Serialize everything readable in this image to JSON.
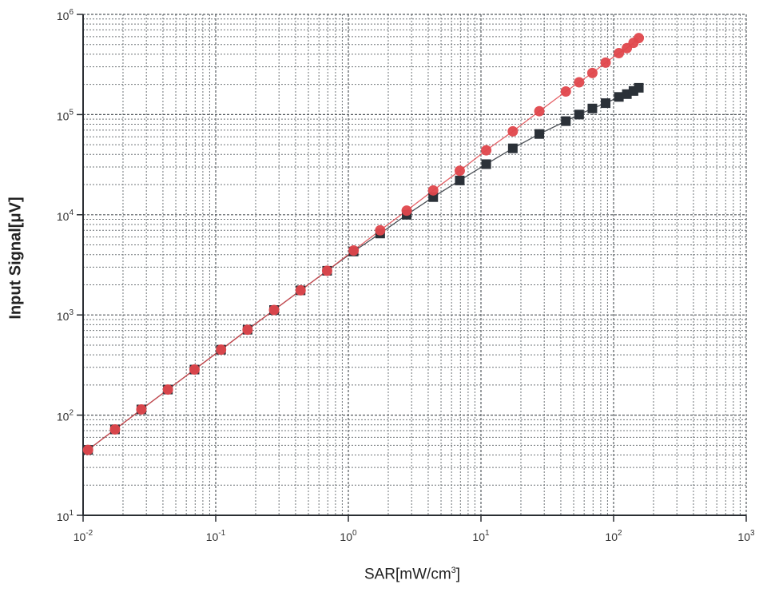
{
  "chart_data": {
    "type": "scatter",
    "title": "",
    "xlabel": "SAR[mW/cm",
    "xlabel_sup": "3",
    "xlabel_close": "]",
    "ylabel": "Input Signal[μV]",
    "xscale": "log",
    "yscale": "log",
    "xlim": [
      0.01,
      1000
    ],
    "ylim": [
      10,
      1000000
    ],
    "x_ticks": [
      {
        "value": 0.01,
        "base": "10",
        "exp": "-2"
      },
      {
        "value": 0.1,
        "base": "10",
        "exp": "-1"
      },
      {
        "value": 1,
        "base": "10",
        "exp": "0"
      },
      {
        "value": 10,
        "base": "10",
        "exp": "1"
      },
      {
        "value": 100,
        "base": "10",
        "exp": "2"
      },
      {
        "value": 1000,
        "base": "10",
        "exp": "3"
      }
    ],
    "y_ticks": [
      {
        "value": 10,
        "base": "10",
        "exp": "1"
      },
      {
        "value": 100,
        "base": "10",
        "exp": "2"
      },
      {
        "value": 1000,
        "base": "10",
        "exp": "3"
      },
      {
        "value": 10000,
        "base": "10",
        "exp": "4"
      },
      {
        "value": 100000,
        "base": "10",
        "exp": "5"
      },
      {
        "value": 1000000,
        "base": "10",
        "exp": "6"
      }
    ],
    "grid": true,
    "legend": "none",
    "series": [
      {
        "marker": "square",
        "color": "#2b3138",
        "points": [
          [
            0.0109,
            45
          ],
          [
            0.0174,
            72
          ],
          [
            0.0275,
            114
          ],
          [
            0.0436,
            180
          ],
          [
            0.0692,
            285
          ],
          [
            0.1097,
            450
          ],
          [
            0.1738,
            712
          ],
          [
            0.2754,
            1120
          ],
          [
            0.4365,
            1760
          ],
          [
            0.6918,
            2760
          ],
          [
            1.096,
            4300
          ],
          [
            1.738,
            6500
          ],
          [
            2.754,
            10000
          ],
          [
            4.365,
            15000
          ],
          [
            6.918,
            22000
          ],
          [
            10.96,
            32000
          ],
          [
            17.38,
            46000
          ],
          [
            27.54,
            64000
          ],
          [
            43.65,
            86000
          ],
          [
            54.95,
            100000
          ],
          [
            69.18,
            115000
          ],
          [
            87.1,
            130000
          ],
          [
            109.6,
            150000
          ],
          [
            125.9,
            160000
          ],
          [
            141.3,
            172000
          ],
          [
            154.9,
            185000
          ]
        ]
      },
      {
        "marker": "circle",
        "color": "#e0474c",
        "points": [
          [
            0.0109,
            45
          ],
          [
            0.0174,
            72
          ],
          [
            0.0275,
            114
          ],
          [
            0.0436,
            180
          ],
          [
            0.0692,
            285
          ],
          [
            0.1097,
            450
          ],
          [
            0.1738,
            712
          ],
          [
            0.2754,
            1120
          ],
          [
            0.4365,
            1760
          ],
          [
            0.6918,
            2760
          ],
          [
            1.096,
            4400
          ],
          [
            1.738,
            7000
          ],
          [
            2.754,
            11000
          ],
          [
            4.365,
            17500
          ],
          [
            6.918,
            27500
          ],
          [
            10.96,
            44000
          ],
          [
            17.38,
            68000
          ],
          [
            27.54,
            108000
          ],
          [
            43.65,
            170000
          ],
          [
            54.95,
            210000
          ],
          [
            69.18,
            260000
          ],
          [
            87.1,
            330000
          ],
          [
            109.6,
            410000
          ],
          [
            125.9,
            460000
          ],
          [
            141.3,
            520000
          ],
          [
            154.9,
            580000
          ]
        ]
      }
    ]
  }
}
